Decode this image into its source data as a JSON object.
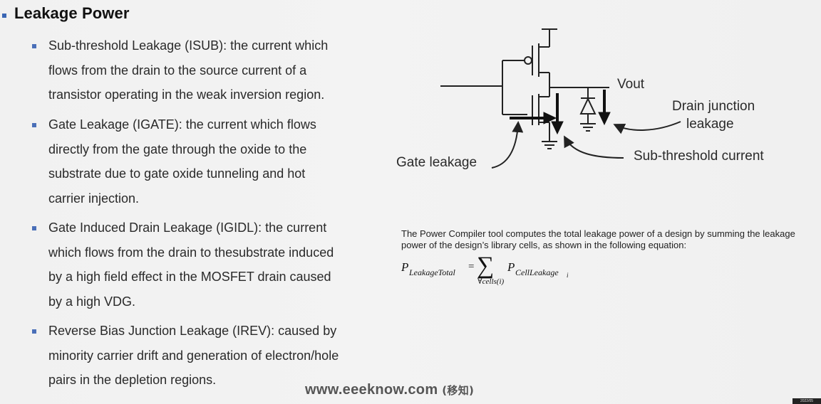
{
  "title": "Leakage Power",
  "bullets": [
    {
      "text": "Sub-threshold Leakage (ISUB): the current which\nflows from the drain to the source current of a\ntransistor operating in the weak inversion region."
    },
    {
      "text": " Gate Leakage (IGATE): the current which flows\ndirectly from the gate through the oxide to the\nsubstrate due to gate oxide tunneling and hot\ncarrier injection."
    },
    {
      "text": "Gate Induced Drain Leakage (IGIDL): the current\nwhich flows from the drain to thesubstrate induced\nby a high field effect in the MOSFET drain caused\nby a high VDG."
    },
    {
      "text": "Reverse Bias Junction Leakage (IREV): caused by\nminority carrier drift and generation of electron/hole\npairs in the depletion regions."
    }
  ],
  "diagram": {
    "vout_label": "Vout",
    "drain_junction_line1": "Drain junction",
    "drain_junction_line2": "leakage",
    "gate_leakage_label": "Gate leakage",
    "subthreshold_label": "Sub-threshold current"
  },
  "compiler_note": "The Power Compiler tool computes the total leakage power of a design by summing the leakage power of the design’s library cells, as shown in the following equation:",
  "equation": {
    "lhs_symbol": "P",
    "lhs_subscript": "LeakageTotal",
    "equals": "=",
    "sum_symbol": "∑",
    "sum_under": "∀cells(i)",
    "rhs_symbol": "P",
    "rhs_subscript": "CellLeakage",
    "rhs_index": "i"
  },
  "watermark": {
    "site": "www.eeeknow.com",
    "cn": "(移知)"
  },
  "timestamp": "2022/05"
}
